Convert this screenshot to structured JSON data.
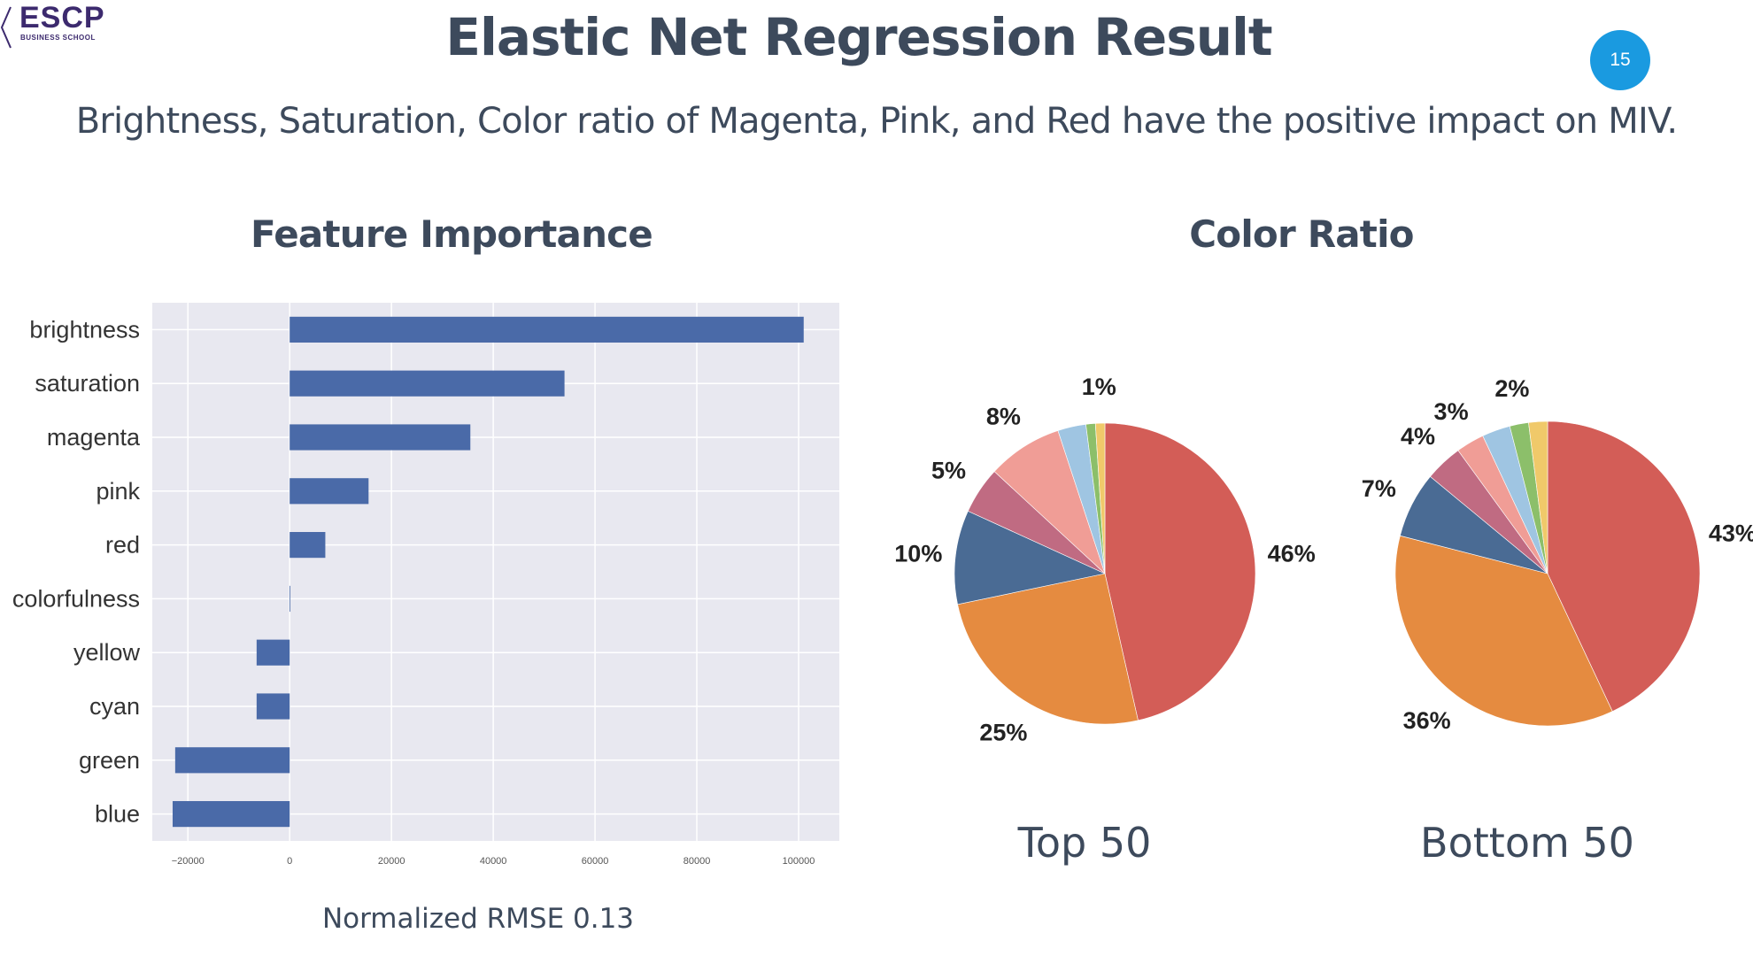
{
  "logo": {
    "name": "ESCP",
    "sub": "BUSINESS SCHOOL"
  },
  "slide": {
    "title": "Elastic Net Regression Result",
    "page_number": "15",
    "subtitle": "Brightness, Saturation, Color ratio of Magenta, Pink, and Red have the positive impact on MIV."
  },
  "feature_section": {
    "title": "Feature Importance",
    "note": "Normalized RMSE 0.13"
  },
  "color_section": {
    "title": "Color Ratio",
    "top_caption": "Top 50",
    "bottom_caption": "Bottom 50"
  },
  "colors": {
    "bar": "#4a6aa8",
    "plot_bg": "#e8e8f0"
  },
  "chart_data": [
    {
      "type": "bar",
      "orientation": "horizontal",
      "title": "Feature Importance",
      "categories": [
        "brightness",
        "saturation",
        "magenta",
        "pink",
        "red",
        "colorfulness",
        "yellow",
        "cyan",
        "green",
        "blue"
      ],
      "values": [
        101000,
        54000,
        35500,
        15500,
        7000,
        0,
        -6500,
        -6500,
        -22500,
        -23000
      ],
      "xticks": [
        -20000,
        0,
        20000,
        40000,
        60000,
        80000,
        100000
      ],
      "xlim": [
        -27000,
        108000
      ],
      "grid": true
    },
    {
      "type": "pie",
      "title": "Top 50",
      "slices": [
        {
          "label": "46%",
          "value": 46,
          "color": "#d35d57"
        },
        {
          "label": "25%",
          "value": 25,
          "color": "#e58b40"
        },
        {
          "label": "10%",
          "value": 10,
          "color": "#4a6b94"
        },
        {
          "label": "5%",
          "value": 5,
          "color": "#c06b82"
        },
        {
          "label": "8%",
          "value": 8,
          "color": "#f09d96"
        },
        {
          "label": "",
          "value": 3,
          "color": "#9fc5e2"
        },
        {
          "label": "",
          "value": 1,
          "color": "#8cbf6a"
        },
        {
          "label": "1%",
          "value": 1,
          "color": "#f0c96a"
        }
      ]
    },
    {
      "type": "pie",
      "title": "Bottom 50",
      "slices": [
        {
          "label": "43%",
          "value": 43,
          "color": "#d35d57"
        },
        {
          "label": "36%",
          "value": 36,
          "color": "#e58b40"
        },
        {
          "label": "7%",
          "value": 7,
          "color": "#4a6b94"
        },
        {
          "label": "4%",
          "value": 4,
          "color": "#c06b82"
        },
        {
          "label": "3%",
          "value": 3,
          "color": "#f09d96"
        },
        {
          "label": "",
          "value": 3,
          "color": "#9fc5e2"
        },
        {
          "label": "2%",
          "value": 2,
          "color": "#8cbf6a"
        },
        {
          "label": "",
          "value": 2,
          "color": "#f0c96a"
        }
      ]
    }
  ]
}
